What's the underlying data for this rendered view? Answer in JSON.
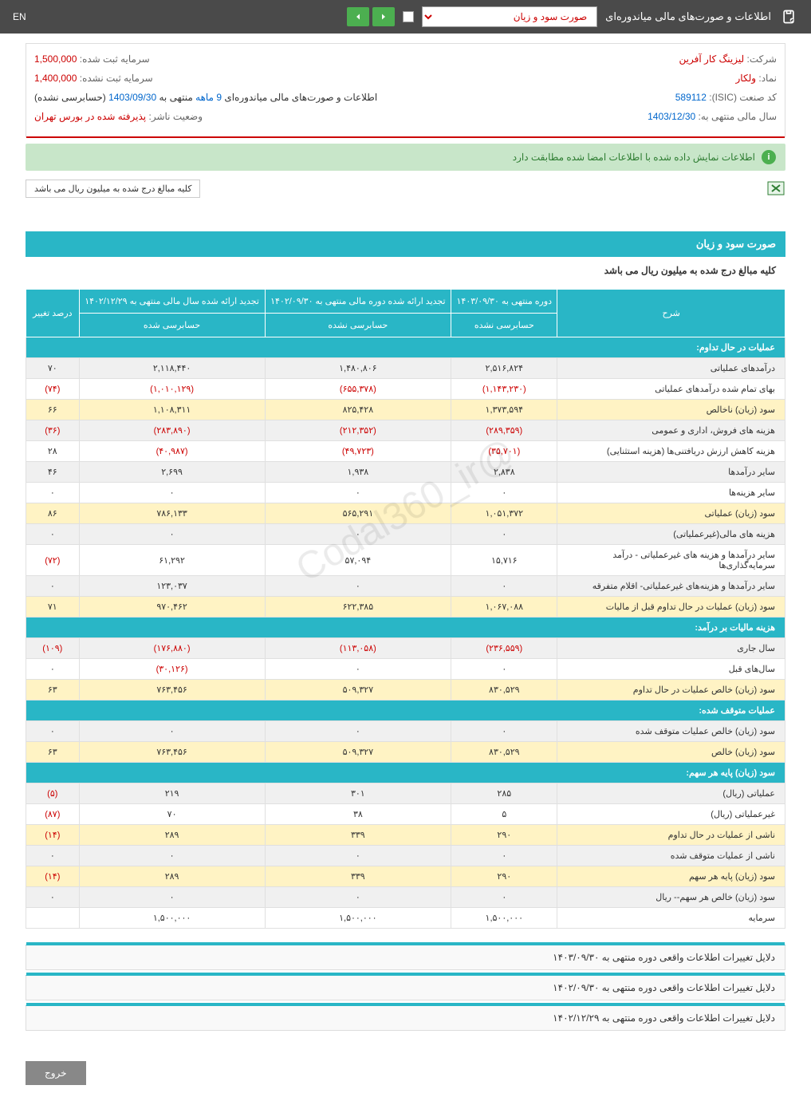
{
  "topbar": {
    "title": "اطلاعات و صورت‌های مالی میاندوره‌ای",
    "dropdown": "صورت سود و زیان",
    "lang": "EN"
  },
  "info": {
    "company_lbl": "شرکت:",
    "company_val": "لیزینگ کار آفرین",
    "capital_reg_lbl": "سرمایه ثبت شده:",
    "capital_reg_val": "1,500,000",
    "symbol_lbl": "نماد:",
    "symbol_val": "ولکار",
    "capital_unreg_lbl": "سرمایه ثبت نشده:",
    "capital_unreg_val": "1,400,000",
    "isic_lbl": "کد صنعت (ISIC):",
    "isic_val": "589112",
    "period_text": "اطلاعات و صورت‌های مالی میاندوره‌ای  9 ماهه منتهی به 1403/09/30 (حسابرسی نشده)",
    "fiscal_lbl": "سال مالی منتهی به:",
    "fiscal_val": "1403/12/30",
    "status_lbl": "وضعیت ناشر:",
    "status_val": "پذیرفته شده در بورس تهران"
  },
  "alert": "اطلاعات نمایش داده شده با اطلاعات امضا شده مطابقت دارد",
  "note": "کلیه مبالغ درج شده به میلیون ریال می باشد",
  "section": {
    "title": "صورت سود و زیان",
    "sub": "کلیه مبالغ درج شده به میلیون ریال می باشد"
  },
  "table": {
    "headers": {
      "desc": "شرح",
      "col1_top": "دوره منتهی به ۱۴۰۳/۰۹/۳۰",
      "col2_top": "تجدید ارائه شده دوره مالی منتهی به ۱۴۰۲/۰۹/۳۰",
      "col3_top": "تجدید ارائه شده سال مالی منتهی به ۱۴۰۲/۱۲/۲۹",
      "col1_sub": "حسابرسی نشده",
      "col2_sub": "حسابرسی نشده",
      "col3_sub": "حسابرسی شده",
      "pct": "درصد تغییر"
    },
    "sections": {
      "s1": "عملیات در حال تداوم:",
      "s2": "هزینه مالیات بر درآمد:",
      "s3": "عملیات متوقف شده:",
      "s4": "سود (زیان) پایه هر سهم:"
    },
    "rows": [
      {
        "d": "درآمدهای عملیاتی",
        "c1": "۲,۵۱۶,۸۲۴",
        "c2": "۱,۴۸۰,۸۰۶",
        "c3": "۲,۱۱۸,۴۴۰",
        "p": "۷۰",
        "cls": "gray"
      },
      {
        "d": "بهای تمام شده درآمدهای عملیاتی",
        "c1": "(۱,۱۴۳,۲۳۰)",
        "c2": "(۶۵۵,۳۷۸)",
        "c3": "(۱,۰۱۰,۱۲۹)",
        "p": "(۷۴)",
        "cls": "",
        "neg": true
      },
      {
        "d": "سود (زیان) ناخالص",
        "c1": "۱,۳۷۳,۵۹۴",
        "c2": "۸۲۵,۴۲۸",
        "c3": "۱,۱۰۸,۳۱۱",
        "p": "۶۶",
        "cls": "yellow"
      },
      {
        "d": "هزینه های فروش، اداری و عمومی",
        "c1": "(۲۸۹,۳۵۹)",
        "c2": "(۲۱۲,۳۵۲)",
        "c3": "(۲۸۳,۸۹۰)",
        "p": "(۳۶)",
        "cls": "gray",
        "neg": true
      },
      {
        "d": "هزینه کاهش ارزش دریافتنی‌ها (هزینه استثنایی)",
        "c1": "(۳۵,۷۰۱)",
        "c2": "(۴۹,۷۲۳)",
        "c3": "(۴۰,۹۸۷)",
        "p": "۲۸",
        "cls": "",
        "neg": true,
        "pnorm": true
      },
      {
        "d": "سایر درآمدها",
        "c1": "۲,۸۳۸",
        "c2": "۱,۹۳۸",
        "c3": "۲,۶۹۹",
        "p": "۴۶",
        "cls": "gray"
      },
      {
        "d": "سایر هزینه‌ها",
        "c1": "۰",
        "c2": "۰",
        "c3": "۰",
        "p": "۰",
        "cls": ""
      },
      {
        "d": "سود (زیان) عملیاتی",
        "c1": "۱,۰۵۱,۳۷۲",
        "c2": "۵۶۵,۲۹۱",
        "c3": "۷۸۶,۱۳۳",
        "p": "۸۶",
        "cls": "yellow"
      },
      {
        "d": "هزینه های مالی(غیرعملیاتی)",
        "c1": "۰",
        "c2": "۰",
        "c3": "۰",
        "p": "۰",
        "cls": "gray"
      },
      {
        "d": "سایر درآمدها و هزینه های غیرعملیاتی - درآمد سرمایه‌گذاری‌ها",
        "c1": "۱۵,۷۱۶",
        "c2": "۵۷,۰۹۴",
        "c3": "۶۱,۲۹۲",
        "p": "(۷۲)",
        "cls": "",
        "pneg": true
      },
      {
        "d": "سایر درآمدها و هزینه‌های غیرعملیاتی- اقلام متفرقه",
        "c1": "۰",
        "c2": "۰",
        "c3": "۱۲۳,۰۳۷",
        "p": "۰",
        "cls": "gray"
      },
      {
        "d": "سود (زیان) عملیات در حال تداوم قبل از مالیات",
        "c1": "۱,۰۶۷,۰۸۸",
        "c2": "۶۲۲,۳۸۵",
        "c3": "۹۷۰,۴۶۲",
        "p": "۷۱",
        "cls": "yellow"
      }
    ],
    "rows2": [
      {
        "d": "سال جاری",
        "c1": "(۲۳۶,۵۵۹)",
        "c2": "(۱۱۳,۰۵۸)",
        "c3": "(۱۷۶,۸۸۰)",
        "p": "(۱۰۹)",
        "cls": "gray",
        "neg": true
      },
      {
        "d": "سال‌های قبل",
        "c1": "۰",
        "c2": "۰",
        "c3": "(۳۰,۱۲۶)",
        "p": "۰",
        "cls": "",
        "c3neg": true
      },
      {
        "d": "سود (زیان) خالص عملیات در حال تداوم",
        "c1": "۸۳۰,۵۲۹",
        "c2": "۵۰۹,۳۲۷",
        "c3": "۷۶۳,۴۵۶",
        "p": "۶۳",
        "cls": "yellow"
      }
    ],
    "rows3": [
      {
        "d": "سود (زیان) خالص عملیات متوقف شده",
        "c1": "۰",
        "c2": "۰",
        "c3": "۰",
        "p": "۰",
        "cls": "gray"
      },
      {
        "d": "سود (زیان) خالص",
        "c1": "۸۳۰,۵۲۹",
        "c2": "۵۰۹,۳۲۷",
        "c3": "۷۶۳,۴۵۶",
        "p": "۶۳",
        "cls": "yellow"
      }
    ],
    "rows4": [
      {
        "d": "عملیاتی (ریال)",
        "c1": "۲۸۵",
        "c2": "۳۰۱",
        "c3": "۲۱۹",
        "p": "(۵)",
        "cls": "gray",
        "pneg": true
      },
      {
        "d": "غیرعملیاتی (ریال)",
        "c1": "۵",
        "c2": "۳۸",
        "c3": "۷۰",
        "p": "(۸۷)",
        "cls": "",
        "pneg": true
      },
      {
        "d": "ناشی از عملیات در حال تداوم",
        "c1": "۲۹۰",
        "c2": "۳۳۹",
        "c3": "۲۸۹",
        "p": "(۱۴)",
        "cls": "yellow",
        "pneg": true
      },
      {
        "d": "ناشی از عملیات متوقف شده",
        "c1": "۰",
        "c2": "۰",
        "c3": "۰",
        "p": "۰",
        "cls": "gray"
      },
      {
        "d": "سود (زیان) پایه هر سهم",
        "c1": "۲۹۰",
        "c2": "۳۳۹",
        "c3": "۲۸۹",
        "p": "(۱۴)",
        "cls": "yellow",
        "pneg": true
      },
      {
        "d": "سود (زیان) خالص هر سهم-- ریال",
        "c1": "۰",
        "c2": "۰",
        "c3": "۰",
        "p": "۰",
        "cls": "gray"
      },
      {
        "d": "سرمایه",
        "c1": "۱,۵۰۰,۰۰۰",
        "c2": "۱,۵۰۰,۰۰۰",
        "c3": "۱,۵۰۰,۰۰۰",
        "p": "",
        "cls": ""
      }
    ]
  },
  "footers": [
    "دلایل تغییرات اطلاعات واقعی دوره منتهی به ۱۴۰۳/۰۹/۳۰",
    "دلایل تغییرات اطلاعات واقعی دوره منتهی به ۱۴۰۲/۰۹/۳۰",
    "دلایل تغییرات اطلاعات واقعی دوره منتهی به ۱۴۰۲/۱۲/۲۹"
  ],
  "exit_btn": "خروج",
  "watermark": "@Codal360_ir"
}
